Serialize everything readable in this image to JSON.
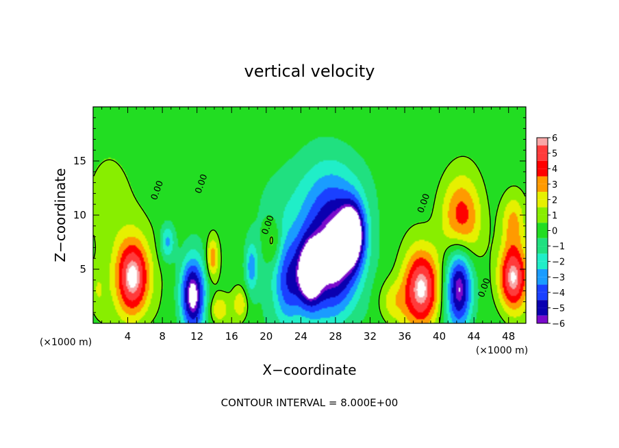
{
  "chart_data": {
    "type": "heatmap",
    "title": "vertical velocity",
    "xlabel": "X−coordinate",
    "ylabel": "Z−coordinate",
    "x_unit_left": "(×1000 m)",
    "x_unit_right": "(×1000 m)",
    "xlim": [
      0,
      50
    ],
    "ylim": [
      0,
      20
    ],
    "x_ticks": [
      4,
      8,
      12,
      16,
      20,
      24,
      28,
      32,
      36,
      40,
      44,
      48
    ],
    "y_ticks": [
      5,
      10,
      15
    ],
    "contour_labels": [
      {
        "text": "0.00",
        "x": 7.7,
        "z": 12.2
      },
      {
        "text": "0.00",
        "x": 12.8,
        "z": 12.8
      },
      {
        "text": "0.00",
        "x": 20.5,
        "z": 9.0
      },
      {
        "text": "0.00",
        "x": 38.5,
        "z": 11.0
      },
      {
        "text": "0.00",
        "x": 45.5,
        "z": 3.2
      }
    ],
    "colorbar": {
      "levels": [
        6,
        5,
        4,
        3,
        2,
        1,
        0,
        -1,
        -2,
        -3,
        -4,
        -5,
        -6
      ],
      "labels": [
        "6",
        "5",
        "4",
        "3",
        "2",
        "1",
        "0",
        "−1",
        "−2",
        "−3",
        "−4",
        "−5",
        "−6"
      ],
      "colors": [
        "#f8a7a7",
        "#ff3b3b",
        "#ff0000",
        "#ff9a00",
        "#e6f000",
        "#88ee00",
        "#22dd22",
        "#20e080",
        "#20eec8",
        "#1a9cff",
        "#1a40ff",
        "#0a00b0",
        "#7a0acc"
      ]
    },
    "features": [
      {
        "x": 0.5,
        "z": 3.0,
        "w": 0.2,
        "sx": 0.7,
        "sz": 1.6
      },
      {
        "x": 4.6,
        "z": 4.2,
        "w": 1.0,
        "sx": 1.4,
        "sz": 2.6
      },
      {
        "x": 8.6,
        "z": 7.5,
        "w": -0.45,
        "sx": 0.6,
        "sz": 1.2
      },
      {
        "x": 11.5,
        "z": 2.6,
        "w": -1.0,
        "sx": 1.0,
        "sz": 2.4
      },
      {
        "x": 13.8,
        "z": 6.0,
        "w": 0.5,
        "sx": 0.5,
        "sz": 1.4
      },
      {
        "x": 14.5,
        "z": 1.3,
        "w": 0.35,
        "sx": 0.8,
        "sz": 0.9
      },
      {
        "x": 17.0,
        "z": 1.8,
        "w": 0.35,
        "sx": 0.6,
        "sz": 1.0
      },
      {
        "x": 18.3,
        "z": 5.2,
        "w": -0.45,
        "sx": 0.5,
        "sz": 1.6
      },
      {
        "x": 20.8,
        "z": 7.5,
        "w": 0.3,
        "sx": 0.7,
        "sz": 1.5
      },
      {
        "x": 22.5,
        "z": 3.5,
        "w": -0.6,
        "sx": 1.2,
        "sz": 3.0
      },
      {
        "x": 25.0,
        "z": 4.5,
        "w": -0.9,
        "sx": 1.0,
        "sz": 2.3
      },
      {
        "x": 28.0,
        "z": 5.5,
        "w": -0.95,
        "sx": 2.0,
        "sz": 3.5
      },
      {
        "x": 30.0,
        "z": 8.2,
        "w": -1.0,
        "sx": 1.0,
        "sz": 2.0
      },
      {
        "x": 28.0,
        "z": 11.5,
        "w": -0.35,
        "sx": 2.4,
        "sz": 3.0
      },
      {
        "x": 24.0,
        "z": 9.0,
        "w": -0.25,
        "sx": 3.0,
        "sz": 4.0
      },
      {
        "x": 38.0,
        "z": 3.2,
        "w": 0.95,
        "sx": 1.5,
        "sz": 2.6
      },
      {
        "x": 42.3,
        "z": 3.4,
        "w": -1.0,
        "sx": 1.1,
        "sz": 2.8
      },
      {
        "x": 42.5,
        "z": 9.6,
        "w": 0.65,
        "sx": 1.6,
        "sz": 2.8
      },
      {
        "x": 48.5,
        "z": 4.2,
        "w": 0.95,
        "sx": 1.2,
        "sz": 2.2
      },
      {
        "x": 48.5,
        "z": 9.5,
        "w": 0.4,
        "sx": 1.0,
        "sz": 1.8
      },
      {
        "x": 34.5,
        "z": 2.0,
        "w": 0.3,
        "sx": 1.2,
        "sz": 1.5
      },
      {
        "x": 2.0,
        "z": 11.0,
        "w": 0.12,
        "sx": 3.0,
        "sz": 4.0
      }
    ]
  },
  "footer": {
    "contour_interval": "CONTOUR INTERVAL = 8.000E+00"
  }
}
